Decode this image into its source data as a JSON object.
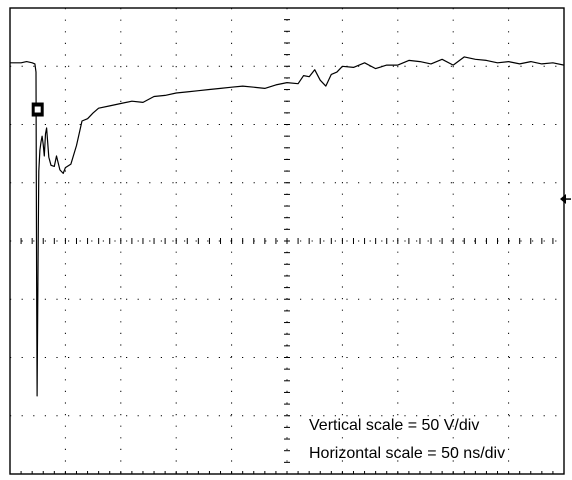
{
  "chart_data": {
    "type": "line",
    "grid": true,
    "grid_divisions": {
      "x": 10,
      "y": 8
    },
    "xlim": [
      0,
      500
    ],
    "ylim": [
      -200,
      200
    ],
    "x_unit": "ns",
    "y_unit": "V",
    "annotations": {
      "vertical_scale": "Vertical scale = 50 V/div",
      "horizontal_scale": "Horizontal scale = 50 ns/div"
    },
    "markers": {
      "trigger_level": {
        "y": 36
      },
      "ground_reference": {
        "x": 25,
        "y": 112
      }
    },
    "series": [
      {
        "x": [
          0,
          5,
          10,
          15,
          20,
          22.5,
          23.5,
          24,
          24.5,
          25,
          25.5,
          26,
          27,
          28,
          29,
          30,
          31,
          32,
          33,
          35,
          37,
          40,
          42,
          45,
          48,
          50,
          55,
          60,
          65,
          70,
          75,
          80,
          90,
          100,
          110,
          120,
          130,
          140,
          150,
          160,
          170,
          180,
          190,
          200,
          210,
          220,
          230,
          240,
          250,
          260,
          265,
          270,
          275,
          280,
          285,
          290,
          295,
          300,
          310,
          320,
          330,
          340,
          350,
          360,
          370,
          380,
          390,
          400,
          410,
          420,
          430,
          440,
          450,
          460,
          470,
          480,
          490,
          500
        ],
        "y": [
          153,
          153,
          153,
          154,
          153,
          152,
          145,
          -30,
          -133,
          -60,
          10,
          60,
          78,
          85,
          90,
          83,
          73,
          92,
          97,
          72,
          65,
          64,
          73,
          61,
          58,
          63,
          66,
          82,
          103,
          105,
          110,
          114,
          116,
          118,
          120,
          119,
          124,
          125,
          127,
          128,
          129,
          130,
          131,
          132,
          133,
          132,
          131,
          134,
          136,
          135,
          142,
          141,
          147,
          138,
          133,
          143,
          145,
          150,
          149,
          153,
          148,
          151,
          151,
          155,
          154,
          152,
          156,
          151,
          158,
          156,
          155,
          153,
          154,
          152,
          154,
          152,
          153,
          151
        ]
      }
    ]
  }
}
